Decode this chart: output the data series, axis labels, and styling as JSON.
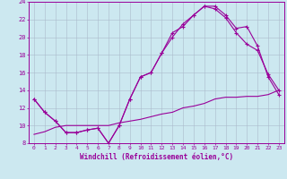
{
  "xlabel": "Windchill (Refroidissement éolien,°C)",
  "background_color": "#cce8f0",
  "line_color": "#990099",
  "grid_color": "#aabbcc",
  "xlim": [
    -0.5,
    23.5
  ],
  "ylim": [
    8,
    24
  ],
  "yticks": [
    8,
    10,
    12,
    14,
    16,
    18,
    20,
    22,
    24
  ],
  "xticks": [
    0,
    1,
    2,
    3,
    4,
    5,
    6,
    7,
    8,
    9,
    10,
    11,
    12,
    13,
    14,
    15,
    16,
    17,
    18,
    19,
    20,
    21,
    22,
    23
  ],
  "line1_x": [
    0,
    1,
    2,
    3,
    4,
    5,
    6,
    7,
    8,
    9,
    10,
    11,
    12,
    13,
    14,
    15,
    16,
    17,
    18,
    19,
    20,
    21,
    22,
    23
  ],
  "line1_y": [
    13.0,
    11.5,
    10.5,
    9.2,
    9.2,
    9.5,
    9.7,
    8.0,
    10.0,
    13.0,
    15.5,
    16.0,
    18.2,
    20.5,
    21.2,
    22.5,
    23.5,
    23.5,
    22.5,
    21.0,
    21.2,
    19.0,
    15.5,
    13.5
  ],
  "line2_x": [
    0,
    1,
    2,
    3,
    4,
    5,
    6,
    7,
    8,
    9,
    10,
    11,
    12,
    13,
    14,
    15,
    16,
    17,
    18,
    19,
    20,
    21,
    22,
    23
  ],
  "line2_y": [
    13.0,
    11.5,
    10.5,
    9.2,
    9.2,
    9.5,
    9.7,
    8.0,
    10.0,
    13.0,
    15.5,
    16.0,
    18.2,
    20.0,
    21.5,
    22.5,
    23.5,
    23.2,
    22.2,
    20.5,
    19.2,
    18.5,
    15.8,
    14.0
  ],
  "line3_x": [
    0,
    1,
    2,
    3,
    4,
    5,
    6,
    7,
    8,
    9,
    10,
    11,
    12,
    13,
    14,
    15,
    16,
    17,
    18,
    19,
    20,
    21,
    22,
    23
  ],
  "line3_y": [
    9.0,
    9.3,
    9.8,
    10.0,
    10.0,
    10.0,
    10.0,
    10.0,
    10.3,
    10.5,
    10.7,
    11.0,
    11.3,
    11.5,
    12.0,
    12.2,
    12.5,
    13.0,
    13.2,
    13.2,
    13.3,
    13.3,
    13.5,
    14.0
  ]
}
